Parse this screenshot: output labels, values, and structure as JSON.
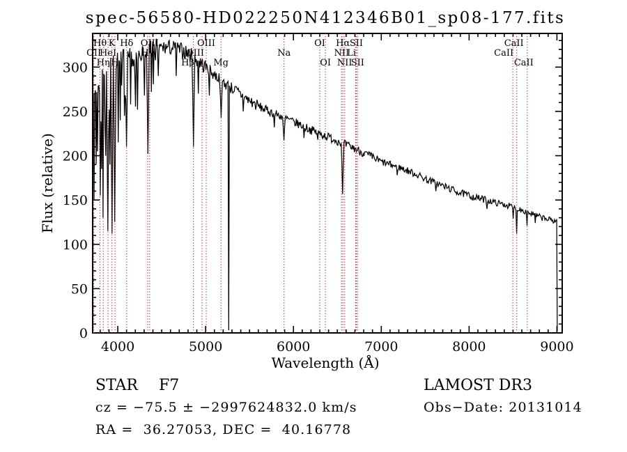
{
  "figure": {
    "title": "spec-56580-HD022250N412346B01_sp08-177.fits",
    "xlabel": "Wavelength (Å)",
    "ylabel": "Flux (relative)"
  },
  "footer": {
    "class": "STAR",
    "subclass": "F7",
    "survey": "LAMOST DR3",
    "cz": "cz = −75.5 ± −2997624832.0 km/s",
    "obs_date": "Obs−Date: 20131014",
    "ra_dec": "RA =  36.27053, DEC =  40.16778"
  },
  "chart_data": {
    "type": "line",
    "title": "spec-56580-HD022250N412346B01_sp08-177.fits",
    "xlabel": "Wavelength (Å)",
    "ylabel": "Flux (relative)",
    "series_name": "flux",
    "xlim": [
      3714,
      9060
    ],
    "ylim": [
      0,
      338
    ],
    "xticks": [
      4000,
      5000,
      6000,
      7000,
      8000,
      9000
    ],
    "x_minor_step": 100,
    "yticks": [
      0,
      50,
      100,
      150,
      200,
      250,
      300
    ],
    "y_minor_step": 10,
    "grid": false,
    "legend": "none",
    "background": "#ffffff",
    "line_color": "#000000",
    "marker_line_color": "#a03030",
    "spectrum_start": {
      "wl": 3714,
      "flux": 160
    },
    "spectrum_end": {
      "wl": 9004,
      "flux": 2
    },
    "continuum": [
      [
        3714,
        255
      ],
      [
        3730,
        275
      ],
      [
        3760,
        280
      ],
      [
        3800,
        290
      ],
      [
        3850,
        295
      ],
      [
        3900,
        298
      ],
      [
        3950,
        300
      ],
      [
        4000,
        303
      ],
      [
        4060,
        306
      ],
      [
        4120,
        308
      ],
      [
        4180,
        310
      ],
      [
        4250,
        313
      ],
      [
        4320,
        315
      ],
      [
        4400,
        319
      ],
      [
        4500,
        322
      ],
      [
        4600,
        322
      ],
      [
        4680,
        320
      ],
      [
        4750,
        318
      ],
      [
        4820,
        314
      ],
      [
        4880,
        310
      ],
      [
        4940,
        305
      ],
      [
        5000,
        300
      ],
      [
        5080,
        293
      ],
      [
        5160,
        287
      ],
      [
        5240,
        280
      ],
      [
        5320,
        275
      ],
      [
        5400,
        269
      ],
      [
        5500,
        262
      ],
      [
        5600,
        256
      ],
      [
        5700,
        251
      ],
      [
        5800,
        247
      ],
      [
        5900,
        243
      ],
      [
        6000,
        238
      ],
      [
        6100,
        234
      ],
      [
        6200,
        229
      ],
      [
        6300,
        225
      ],
      [
        6400,
        221
      ],
      [
        6500,
        217
      ],
      [
        6600,
        212
      ],
      [
        6700,
        208
      ],
      [
        6800,
        203
      ],
      [
        6900,
        198
      ],
      [
        7000,
        193
      ],
      [
        7100,
        190
      ],
      [
        7200,
        187
      ],
      [
        7300,
        183
      ],
      [
        7400,
        179
      ],
      [
        7500,
        174
      ],
      [
        7600,
        170
      ],
      [
        7700,
        166
      ],
      [
        7800,
        162
      ],
      [
        7900,
        158
      ],
      [
        8000,
        155
      ],
      [
        8100,
        152
      ],
      [
        8200,
        150
      ],
      [
        8300,
        147
      ],
      [
        8400,
        145
      ],
      [
        8500,
        142
      ],
      [
        8600,
        139
      ],
      [
        8700,
        135
      ],
      [
        8800,
        131
      ],
      [
        8900,
        128
      ],
      [
        9000,
        126
      ]
    ],
    "absorption_features": [
      {
        "wl": 3727,
        "flux": 150,
        "w": 10
      },
      {
        "wl": 3750,
        "flux": 190,
        "w": 8
      },
      {
        "wl": 3770,
        "flux": 205,
        "w": 8
      },
      {
        "wl": 3798,
        "flux": 155,
        "w": 10
      },
      {
        "wl": 3820,
        "flux": 185,
        "w": 8
      },
      {
        "wl": 3835,
        "flux": 130,
        "w": 10
      },
      {
        "wl": 3860,
        "flux": 200,
        "w": 8
      },
      {
        "wl": 3889,
        "flux": 115,
        "w": 12
      },
      {
        "wl": 3910,
        "flux": 190,
        "w": 8
      },
      {
        "wl": 3933,
        "flux": 112,
        "w": 14
      },
      {
        "wl": 3968,
        "flux": 125,
        "w": 14
      },
      {
        "wl": 4005,
        "flux": 215,
        "w": 8
      },
      {
        "wl": 4026,
        "flux": 240,
        "w": 8
      },
      {
        "wl": 4077,
        "flux": 245,
        "w": 6
      },
      {
        "wl": 4101,
        "flux": 210,
        "w": 14
      },
      {
        "wl": 4144,
        "flux": 258,
        "w": 6
      },
      {
        "wl": 4226,
        "flux": 252,
        "w": 8
      },
      {
        "wl": 4300,
        "flux": 268,
        "w": 10
      },
      {
        "wl": 4340,
        "flux": 202,
        "w": 14
      },
      {
        "wl": 4383,
        "flux": 272,
        "w": 8
      },
      {
        "wl": 4457,
        "flux": 290,
        "w": 6
      },
      {
        "wl": 4668,
        "flux": 290,
        "w": 6
      },
      {
        "wl": 4861,
        "flux": 210,
        "w": 14
      },
      {
        "wl": 4920,
        "flux": 270,
        "w": 6
      },
      {
        "wl": 5040,
        "flux": 268,
        "w": 6
      },
      {
        "wl": 5175,
        "flux": 243,
        "w": 12
      },
      {
        "wl": 5265,
        "flux": 3,
        "w": 6
      },
      {
        "wl": 5430,
        "flux": 250,
        "w": 6
      },
      {
        "wl": 5780,
        "flux": 232,
        "w": 6
      },
      {
        "wl": 5893,
        "flux": 217,
        "w": 12
      },
      {
        "wl": 6122,
        "flux": 220,
        "w": 6
      },
      {
        "wl": 6280,
        "flux": 218,
        "w": 5
      },
      {
        "wl": 6563,
        "flux": 157,
        "w": 12
      },
      {
        "wl": 7180,
        "flux": 178,
        "w": 5
      },
      {
        "wl": 7620,
        "flux": 160,
        "w": 6
      },
      {
        "wl": 8205,
        "flux": 140,
        "w": 6
      },
      {
        "wl": 8498,
        "flux": 129,
        "w": 10
      },
      {
        "wl": 8542,
        "flux": 112,
        "w": 10
      },
      {
        "wl": 8662,
        "flux": 121,
        "w": 10
      },
      {
        "wl": 8750,
        "flux": 124,
        "w": 6
      }
    ],
    "noise_regions": [
      {
        "max": 4450,
        "amp": 14
      },
      {
        "max": 5000,
        "amp": 9
      },
      {
        "max": 5600,
        "amp": 7
      },
      {
        "max": 7000,
        "amp": 5
      },
      {
        "max": 8200,
        "amp": 4
      },
      {
        "max": 9100,
        "amp": 3.5
      }
    ],
    "absorption_forest": [
      {
        "min": 3714,
        "max": 3995,
        "prob": 0.3,
        "depth": 65
      },
      {
        "min": 3995,
        "max": 4470,
        "prob": 0.22,
        "depth": 48
      }
    ],
    "spectral_lines": [
      {
        "wl": 3727,
        "label": "OII",
        "row": 2
      },
      {
        "wl": 3798,
        "label": "Hθ",
        "row": 1
      },
      {
        "wl": 3835,
        "label": "Hη",
        "row": 3
      },
      {
        "wl": 3889,
        "label": "HeI",
        "row": 2
      },
      {
        "wl": 3933,
        "label": "K",
        "row": 1
      },
      {
        "wl": 3968,
        "label": "H",
        "row": 3
      },
      {
        "wl": 4101,
        "label": "Hδ",
        "row": 1
      },
      {
        "wl": 4340,
        "label": "Hγ",
        "row": 2
      },
      {
        "wl": 4363,
        "label": "OIII",
        "row": 1
      },
      {
        "wl": 4861,
        "label": "Hβ",
        "row": 3,
        "dx": -8
      },
      {
        "wl": 4959,
        "label": "OIII",
        "row": 2,
        "dx": -10
      },
      {
        "wl": 5007,
        "label": "OIII",
        "row": 1
      },
      {
        "wl": 5175,
        "label": "Mg",
        "row": 3
      },
      {
        "wl": 5893,
        "label": "Na",
        "row": 2
      },
      {
        "wl": 6300,
        "label": "OI",
        "row": 1
      },
      {
        "wl": 6364,
        "label": "OI",
        "row": 3
      },
      {
        "wl": 6548,
        "label": "NII",
        "row": 2
      },
      {
        "wl": 6563,
        "label": "Hα",
        "row": 1
      },
      {
        "wl": 6583,
        "label": "NII",
        "row": 3
      },
      {
        "wl": 6708,
        "label": "Li",
        "row": 2,
        "dx": -6
      },
      {
        "wl": 6716,
        "label": "SII",
        "row": 1
      },
      {
        "wl": 6731,
        "label": "SII",
        "row": 3
      },
      {
        "wl": 8498,
        "label": "CaII",
        "row": 2,
        "dx": -13
      },
      {
        "wl": 8542,
        "label": "CaII",
        "row": 1,
        "dx": -4
      },
      {
        "wl": 8662,
        "label": "CaII",
        "row": 3,
        "dx": -5
      }
    ]
  }
}
